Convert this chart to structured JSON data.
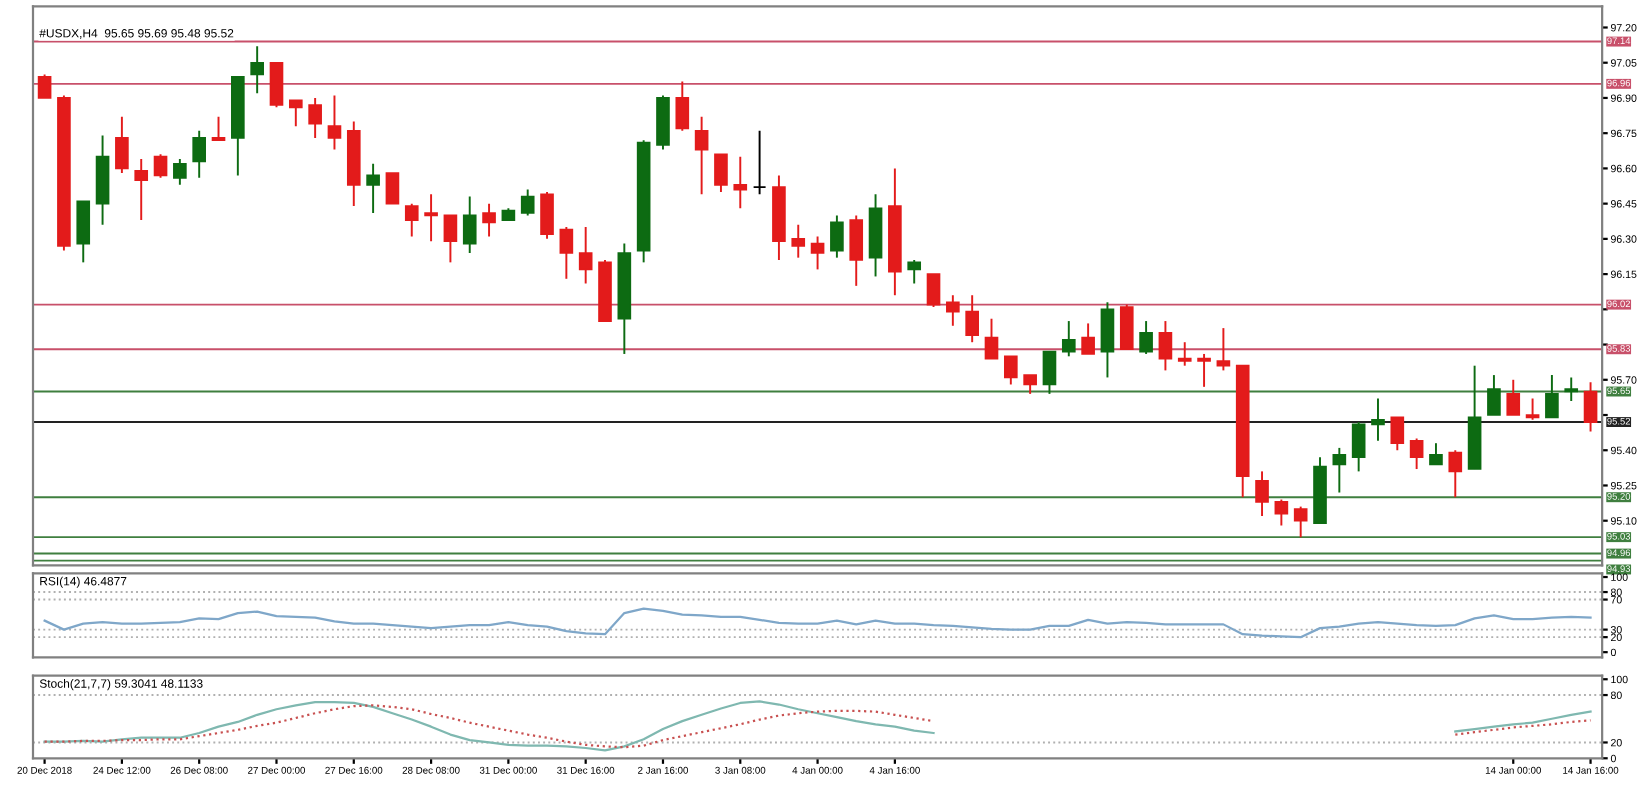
{
  "chart_data": [
    {
      "type": "candlestick",
      "title": "#USDX,H4  95.65 95.69 95.48 95.52",
      "tick_labels": "y",
      "categories": [
        null,
        null,
        null,
        null,
        null,
        null,
        null,
        null,
        null,
        null,
        null,
        null,
        null,
        null,
        null,
        null,
        null,
        null,
        null,
        null,
        null,
        null,
        null,
        null,
        null,
        null,
        null,
        null,
        null,
        null,
        null,
        null,
        null,
        null,
        null,
        null,
        null,
        null,
        null,
        null,
        null,
        null,
        null,
        null,
        null,
        null,
        null,
        null,
        null,
        null,
        null,
        null,
        null,
        null,
        null,
        null,
        null,
        null,
        null,
        null,
        null,
        null,
        null,
        null,
        null,
        null,
        null,
        null,
        null,
        null,
        null,
        null,
        null,
        null,
        null,
        null,
        null,
        null,
        null,
        null,
        null
      ],
      "ohlc": [
        [
          96.99,
          97.0,
          96.9,
          96.9
        ],
        [
          96.9,
          96.91,
          96.25,
          96.27
        ],
        [
          96.28,
          96.46,
          96.2,
          96.46
        ],
        [
          96.45,
          96.74,
          96.36,
          96.65
        ],
        [
          96.73,
          96.82,
          96.58,
          96.6
        ],
        [
          96.59,
          96.64,
          96.38,
          96.55
        ],
        [
          96.65,
          96.66,
          96.56,
          96.57
        ],
        [
          96.56,
          96.64,
          96.53,
          96.62
        ],
        [
          96.63,
          96.76,
          96.56,
          96.73
        ],
        [
          96.73,
          96.82,
          96.72,
          96.72
        ],
        [
          96.73,
          96.99,
          96.57,
          96.99
        ],
        [
          97.0,
          97.12,
          96.92,
          97.05
        ],
        [
          97.05,
          97.05,
          96.86,
          96.87
        ],
        [
          96.89,
          96.89,
          96.78,
          96.86
        ],
        [
          96.87,
          96.9,
          96.73,
          96.79
        ],
        [
          96.78,
          96.91,
          96.68,
          96.73
        ],
        [
          96.76,
          96.8,
          96.44,
          96.53
        ],
        [
          96.53,
          96.62,
          96.41,
          96.57
        ],
        [
          96.58,
          96.58,
          96.45,
          96.45
        ],
        [
          96.44,
          96.45,
          96.31,
          96.38
        ],
        [
          96.41,
          96.49,
          96.29,
          96.4
        ],
        [
          96.4,
          96.4,
          96.2,
          96.29
        ],
        [
          96.28,
          96.48,
          96.24,
          96.4
        ],
        [
          96.41,
          96.45,
          96.31,
          96.37
        ],
        [
          96.38,
          96.43,
          96.38,
          96.42
        ],
        [
          96.41,
          96.51,
          96.4,
          96.48
        ],
        [
          96.49,
          96.5,
          96.3,
          96.32
        ],
        [
          96.34,
          96.35,
          96.13,
          96.24
        ],
        [
          96.24,
          96.35,
          96.11,
          96.17
        ],
        [
          96.2,
          96.21,
          95.95,
          95.95
        ],
        [
          95.96,
          96.28,
          95.81,
          96.24
        ],
        [
          96.25,
          96.72,
          96.2,
          96.71
        ],
        [
          96.7,
          96.91,
          96.68,
          96.9
        ],
        [
          96.9,
          96.97,
          96.76,
          96.77
        ],
        [
          96.76,
          96.82,
          96.49,
          96.68
        ],
        [
          96.66,
          96.66,
          96.5,
          96.53
        ],
        [
          96.53,
          96.65,
          96.43,
          96.51
        ],
        [
          96.52,
          96.76,
          96.49,
          96.52
        ],
        [
          96.52,
          96.57,
          96.21,
          96.29
        ],
        [
          96.3,
          96.36,
          96.22,
          96.27
        ],
        [
          96.28,
          96.31,
          96.17,
          96.24
        ],
        [
          96.25,
          96.4,
          96.22,
          96.37
        ],
        [
          96.38,
          96.4,
          96.1,
          96.21
        ],
        [
          96.22,
          96.49,
          96.14,
          96.43
        ],
        [
          96.44,
          96.6,
          96.06,
          96.16
        ],
        [
          96.17,
          96.21,
          96.11,
          96.2
        ],
        [
          96.15,
          96.15,
          96.01,
          96.02
        ],
        [
          96.03,
          96.06,
          95.93,
          95.99
        ],
        [
          95.99,
          96.06,
          95.86,
          95.89
        ],
        [
          95.88,
          95.96,
          95.79,
          95.79
        ],
        [
          95.8,
          95.8,
          95.68,
          95.71
        ],
        [
          95.72,
          95.72,
          95.64,
          95.68
        ],
        [
          95.68,
          95.82,
          95.64,
          95.82
        ],
        [
          95.82,
          95.95,
          95.8,
          95.87
        ],
        [
          95.88,
          95.94,
          95.81,
          95.81
        ],
        [
          95.82,
          96.03,
          95.71,
          96.0
        ],
        [
          96.01,
          96.02,
          95.83,
          95.83
        ],
        [
          95.82,
          95.95,
          95.81,
          95.9
        ],
        [
          95.9,
          95.95,
          95.74,
          95.79
        ],
        [
          95.79,
          95.86,
          95.76,
          95.78
        ],
        [
          95.79,
          95.81,
          95.67,
          95.78
        ],
        [
          95.78,
          95.92,
          95.74,
          95.76
        ],
        [
          95.76,
          95.76,
          95.2,
          95.29
        ],
        [
          95.27,
          95.31,
          95.12,
          95.18
        ],
        [
          95.18,
          95.19,
          95.08,
          95.13
        ],
        [
          95.15,
          95.16,
          95.03,
          95.1
        ],
        [
          95.09,
          95.37,
          95.09,
          95.33
        ],
        [
          95.34,
          95.41,
          95.22,
          95.38
        ],
        [
          95.37,
          95.52,
          95.31,
          95.51
        ],
        [
          95.51,
          95.62,
          95.44,
          95.53
        ],
        [
          95.54,
          95.54,
          95.4,
          95.43
        ],
        [
          95.44,
          95.45,
          95.32,
          95.37
        ],
        [
          95.34,
          95.43,
          95.34,
          95.38
        ],
        [
          95.39,
          95.4,
          95.2,
          95.31
        ],
        [
          95.32,
          95.76,
          95.32,
          95.54
        ],
        [
          95.55,
          95.72,
          95.55,
          95.66
        ],
        [
          95.64,
          95.7,
          95.55,
          95.55
        ],
        [
          95.55,
          95.62,
          95.53,
          95.54
        ],
        [
          95.54,
          95.72,
          95.54,
          95.64
        ],
        [
          95.65,
          95.71,
          95.61,
          95.66
        ],
        [
          95.65,
          95.69,
          95.48,
          95.52
        ]
      ],
      "colors": [
        "#e31b1b",
        "#e31b1b",
        "#0d6b12",
        "#0d6b12",
        "#e31b1b",
        "#e31b1b",
        "#e31b1b",
        "#0d6b12",
        "#0d6b12",
        "#e31b1b",
        "#0d6b12",
        "#0d6b12",
        "#e31b1b",
        "#e31b1b",
        "#e31b1b",
        "#e31b1b",
        "#e31b1b",
        "#0d6b12",
        "#e31b1b",
        "#e31b1b",
        "#e31b1b",
        "#e31b1b",
        "#0d6b12",
        "#e31b1b",
        "#0d6b12",
        "#0d6b12",
        "#e31b1b",
        "#e31b1b",
        "#e31b1b",
        "#e31b1b",
        "#0d6b12",
        "#0d6b12",
        "#0d6b12",
        "#e31b1b",
        "#e31b1b",
        "#e31b1b",
        "#e31b1b",
        "#000000",
        "#e31b1b",
        "#e31b1b",
        "#e31b1b",
        "#0d6b12",
        "#e31b1b",
        "#0d6b12",
        "#e31b1b",
        "#0d6b12",
        "#e31b1b",
        "#e31b1b",
        "#e31b1b",
        "#e31b1b",
        "#e31b1b",
        "#e31b1b",
        "#0d6b12",
        "#0d6b12",
        "#e31b1b",
        "#0d6b12",
        "#e31b1b",
        "#0d6b12",
        "#e31b1b",
        "#e31b1b",
        "#e31b1b",
        "#e31b1b",
        "#e31b1b",
        "#e31b1b",
        "#e31b1b",
        "#e31b1b",
        "#0d6b12",
        "#0d6b12",
        "#0d6b12",
        "#0d6b12",
        "#e31b1b",
        "#e31b1b",
        "#0d6b12",
        "#e31b1b",
        "#0d6b12",
        "#0d6b12",
        "#e31b1b",
        "#e31b1b",
        "#0d6b12",
        "#0d6b12",
        "#e31b1b"
      ],
      "ylim": [
        94.91,
        97.29
      ],
      "yticks": [
        {
          "value": 97.2,
          "label": "97.20"
        },
        {
          "value": 97.05,
          "label": "97.05"
        },
        {
          "value": 96.9,
          "label": "96.90"
        },
        {
          "value": 96.75,
          "label": "96.75"
        },
        {
          "value": 96.6,
          "label": "96.60"
        },
        {
          "value": 96.45,
          "label": "96.45"
        },
        {
          "value": 96.3,
          "label": "96.30"
        },
        {
          "value": 96.15,
          "label": "96.15"
        },
        {
          "value": 96.0,
          "label": null
        },
        {
          "value": 95.85,
          "label": null
        },
        {
          "value": 95.7,
          "label": "95.70"
        },
        {
          "value": 95.55,
          "label": null
        },
        {
          "value": 95.4,
          "label": "95.40"
        },
        {
          "value": 95.25,
          "label": "95.25"
        },
        {
          "value": 95.1,
          "label": "95.10"
        }
      ],
      "ref_lines": [
        {
          "axis": "y",
          "value": 97.14,
          "label": "97.14",
          "color": "#c8506a"
        },
        {
          "axis": "y",
          "value": 96.96,
          "label": "96.96",
          "color": "#c8506a"
        },
        {
          "axis": "y",
          "value": 96.02,
          "label": "96.02",
          "color": "#c8506a"
        },
        {
          "axis": "y",
          "value": 95.83,
          "label": "95.83",
          "color": "#c8506a"
        },
        {
          "axis": "y",
          "value": 95.65,
          "label": "95.65",
          "color": "#3f7f3f"
        },
        {
          "axis": "y",
          "value": 95.52,
          "label": "95.52",
          "color": "#222222"
        },
        {
          "axis": "y",
          "value": 95.2,
          "label": "95.20",
          "color": "#3f7f3f"
        },
        {
          "axis": "y",
          "value": 95.03,
          "label": "95.03",
          "color": "#3f7f3f"
        },
        {
          "axis": "y",
          "value": 94.96,
          "label": "94.96",
          "color": "#3f7f3f"
        },
        {
          "axis": "y",
          "value": 94.93,
          "label": "94.93",
          "color": "#3f7f3f"
        }
      ]
    },
    {
      "type": "line",
      "title": "RSI(14) 46.4877",
      "tick_labels": "y",
      "categories": [
        null,
        null,
        null,
        null,
        null,
        null,
        null,
        null,
        null,
        null,
        null,
        null,
        null,
        null,
        null,
        null,
        null,
        null,
        null,
        null,
        null,
        null,
        null,
        null,
        null,
        null,
        null,
        null,
        null,
        null,
        null,
        null,
        null,
        null,
        null,
        null,
        null,
        null,
        null,
        null,
        null,
        null,
        null,
        null,
        null,
        null,
        null,
        null,
        null,
        null,
        null,
        null,
        null,
        null,
        null,
        null,
        null,
        null,
        null,
        null,
        null,
        null,
        null,
        null,
        null,
        null,
        null,
        null,
        null,
        null,
        null,
        null,
        null,
        null,
        null,
        null,
        null,
        null,
        null,
        null,
        null
      ],
      "series": [
        {
          "color": "#7fa7c9",
          "values": [
            42,
            30,
            38,
            40,
            38,
            38,
            39,
            40,
            45,
            44,
            52,
            54,
            48,
            47,
            46,
            41,
            38,
            38,
            36,
            34,
            32,
            34,
            36,
            36,
            40,
            36,
            34,
            28,
            25,
            24,
            52,
            58,
            55,
            50,
            49,
            47,
            47,
            43,
            39,
            38,
            38,
            42,
            37,
            42,
            38,
            38,
            36,
            35,
            33,
            31,
            30,
            30,
            35,
            35,
            43,
            38,
            40,
            39,
            37,
            37,
            37,
            37,
            24,
            22,
            21,
            20,
            32,
            34,
            38,
            40,
            38,
            36,
            35,
            36,
            45,
            49,
            44,
            44,
            46,
            47,
            46
          ]
        }
      ],
      "ylim": [
        -7,
        105
      ],
      "yticks": [
        100,
        80,
        70,
        30,
        20,
        0
      ],
      "ref_lines": [
        {
          "axis": "y",
          "value": 80,
          "color": "#b0b0b0",
          "line_style": "dotted"
        },
        {
          "axis": "y",
          "value": 70,
          "color": "#b0b0b0",
          "line_style": "dotted"
        },
        {
          "axis": "y",
          "value": 30,
          "color": "#b0b0b0",
          "line_style": "dotted"
        },
        {
          "axis": "y",
          "value": 20,
          "color": "#b0b0b0",
          "line_style": "dotted"
        }
      ]
    },
    {
      "type": "line",
      "title": "Stoch(21,7,7) 59.3041 48.1133",
      "categories": [
        "20 Dec 2018",
        null,
        null,
        null,
        "24 Dec 12:00",
        null,
        null,
        null,
        "26 Dec 08:00",
        null,
        null,
        null,
        "27 Dec 00:00",
        null,
        null,
        null,
        "27 Dec 16:00",
        null,
        null,
        null,
        "28 Dec 08:00",
        null,
        null,
        null,
        "31 Dec 00:00",
        null,
        null,
        null,
        "31 Dec 16:00",
        null,
        null,
        null,
        "2 Jan 16:00",
        null,
        null,
        null,
        "3 Jan 08:00",
        null,
        null,
        null,
        "4 Jan 00:00",
        null,
        null,
        null,
        "4 Jan 16:00",
        null,
        null,
        null,
        null,
        null,
        null,
        null,
        null,
        null,
        null,
        null,
        null,
        null,
        null,
        null,
        null,
        null,
        null,
        null,
        null,
        null,
        null,
        null,
        null,
        null,
        null,
        null,
        null,
        null,
        null,
        null,
        "14 Jan 00:00",
        null,
        null,
        null,
        "14 Jan 16:00"
      ],
      "series": [
        {
          "color": "#7fb8b0",
          "line_style": "solid",
          "values": [
            21,
            21,
            22,
            21,
            24,
            26,
            26,
            26,
            32,
            40,
            46,
            55,
            62,
            67,
            71,
            71,
            70,
            65,
            57,
            49,
            40,
            30,
            23,
            20,
            17,
            16,
            16,
            15,
            13,
            10,
            15,
            24,
            37,
            47,
            55,
            63,
            70,
            72,
            68,
            62,
            57,
            52,
            47,
            43,
            40,
            35,
            32,
            null,
            null,
            null,
            null,
            null,
            null,
            null,
            null,
            null,
            null,
            null,
            null,
            null,
            null,
            null,
            null,
            null,
            null,
            null,
            null,
            null,
            null,
            null,
            null,
            null,
            null,
            34,
            37,
            40,
            43,
            45,
            50,
            55,
            59
          ]
        },
        {
          "color": "#c85050",
          "line_style": "dotted",
          "values": [
            21,
            21,
            22,
            22,
            23,
            23,
            24,
            24,
            28,
            32,
            36,
            41,
            45,
            51,
            57,
            62,
            66,
            67,
            65,
            62,
            56,
            51,
            45,
            40,
            35,
            30,
            26,
            21,
            17,
            15,
            14,
            16,
            23,
            28,
            33,
            38,
            43,
            49,
            54,
            57,
            59,
            60,
            60,
            59,
            55,
            51,
            47,
            null,
            null,
            null,
            null,
            null,
            null,
            null,
            null,
            null,
            null,
            null,
            null,
            null,
            null,
            null,
            null,
            null,
            null,
            null,
            null,
            null,
            null,
            null,
            null,
            null,
            null,
            30,
            33,
            36,
            39,
            41,
            43,
            46,
            48
          ]
        }
      ],
      "ylim": [
        0,
        104.5
      ],
      "yticks": [
        100,
        80,
        20,
        0
      ],
      "ref_lines": [
        {
          "axis": "y",
          "value": 80,
          "color": "#b0b0b0",
          "line_style": "dotted"
        },
        {
          "axis": "y",
          "value": 20,
          "color": "#b0b0b0",
          "line_style": "dotted"
        }
      ]
    }
  ]
}
